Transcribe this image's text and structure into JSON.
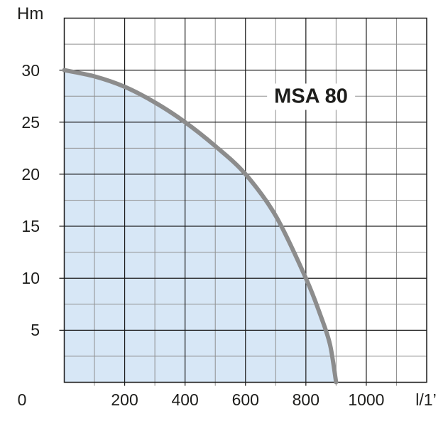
{
  "title": "MSA 80",
  "axes": {
    "y_title": "Hm",
    "x_unit": "l/1’",
    "y_ticks": [
      30,
      25,
      20,
      15,
      10,
      5
    ],
    "x_ticks": [
      0,
      200,
      400,
      600,
      800,
      1000
    ]
  },
  "chart_data": {
    "type": "area",
    "title": "MSA 80",
    "xlabel": "l/1’",
    "ylabel": "Hm",
    "xlim": [
      0,
      1200
    ],
    "ylim": [
      0,
      35
    ],
    "x_major_step": 200,
    "x_minor_step": 100,
    "y_major_step": 5,
    "y_minor_step": 2.5,
    "grid": "on",
    "legend": "none",
    "series": [
      {
        "name": "MSA 80 pump curve",
        "points": [
          [
            0,
            30
          ],
          [
            100,
            29.4
          ],
          [
            200,
            28.4
          ],
          [
            300,
            26.9
          ],
          [
            400,
            25
          ],
          [
            500,
            22.7
          ],
          [
            600,
            20
          ],
          [
            700,
            16
          ],
          [
            800,
            10
          ],
          [
            850,
            6.3
          ],
          [
            880,
            3.6
          ],
          [
            900,
            0
          ]
        ]
      }
    ]
  },
  "colors": {
    "background": "#ffffff",
    "area_fill": "#d7e7f6",
    "curve": "#8c8c8c",
    "grid_major": "#1a1a1a",
    "grid_minor": "#909090",
    "text": "#1d1d1b"
  }
}
